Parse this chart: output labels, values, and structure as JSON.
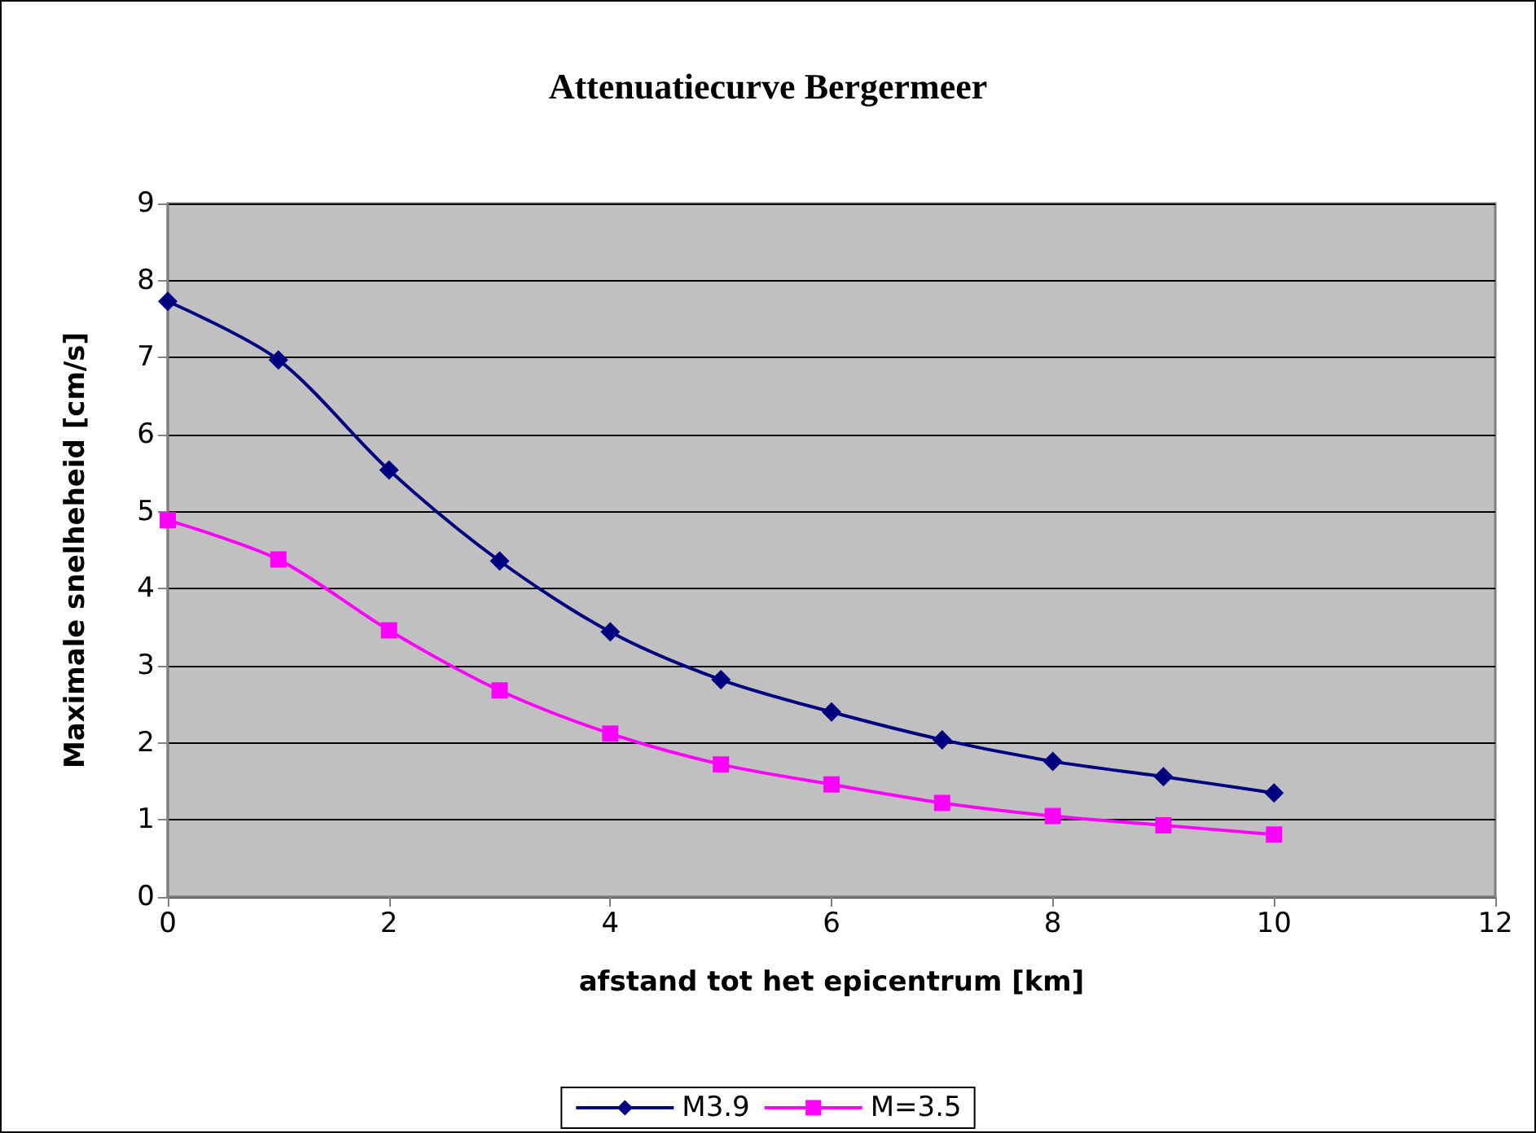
{
  "chart_data": {
    "type": "line",
    "title": "Attenuatiecurve Bergermeer",
    "xlabel": "afstand tot het epicentrum [km]",
    "ylabel": "Maximale snelheheid [cm/s]",
    "x": [
      0,
      1,
      2,
      3,
      4,
      5,
      6,
      7,
      8,
      9,
      10
    ],
    "series": [
      {
        "name": "M3.9",
        "color": "#000080",
        "marker": "diamond",
        "values": [
          7.73,
          6.97,
          5.54,
          4.36,
          3.44,
          2.82,
          2.4,
          2.04,
          1.76,
          1.56,
          1.35
        ]
      },
      {
        "name": "M=3.5",
        "color": "#ff00ff",
        "marker": "square",
        "values": [
          4.89,
          4.38,
          3.46,
          2.68,
          2.12,
          1.72,
          1.46,
          1.22,
          1.05,
          0.93,
          0.81
        ]
      }
    ],
    "xlim": [
      0,
      12
    ],
    "xticks": [
      0,
      2,
      4,
      6,
      8,
      10,
      12
    ],
    "ylim": [
      0,
      9
    ],
    "yticks": [
      0,
      1,
      2,
      3,
      4,
      5,
      6,
      7,
      8,
      9
    ],
    "grid": "y",
    "legend": "bottom",
    "line_style": "solid"
  }
}
